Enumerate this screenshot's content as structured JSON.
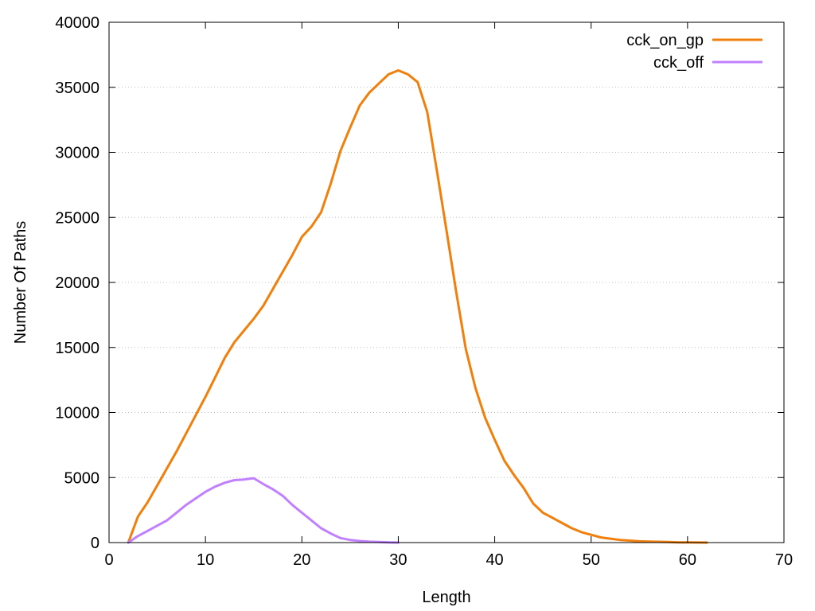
{
  "chart_data": {
    "type": "line",
    "title": "",
    "xlabel": "Length",
    "ylabel": "Number Of Paths",
    "xlim": [
      0,
      70
    ],
    "ylim": [
      0,
      40000
    ],
    "x_ticks": [
      0,
      10,
      20,
      30,
      40,
      50,
      60,
      70
    ],
    "y_ticks": [
      0,
      5000,
      10000,
      15000,
      20000,
      25000,
      30000,
      35000,
      40000
    ],
    "grid": "horizontal-dotted",
    "legend_position": "top-right",
    "series": [
      {
        "name": "cck_on_gp",
        "color": "#f07f0b",
        "x": [
          2,
          3,
          4,
          5,
          6,
          7,
          8,
          9,
          10,
          11,
          12,
          13,
          14,
          15,
          16,
          17,
          18,
          19,
          20,
          21,
          22,
          23,
          24,
          25,
          26,
          27,
          28,
          29,
          30,
          31,
          32,
          33,
          34,
          35,
          36,
          37,
          38,
          39,
          40,
          41,
          42,
          43,
          44,
          45,
          46,
          47,
          48,
          49,
          50,
          51,
          52,
          53,
          54,
          55,
          56,
          57,
          58,
          59,
          60,
          61,
          62
        ],
        "values": [
          0,
          2000,
          3100,
          4400,
          5700,
          7000,
          8400,
          9800,
          11200,
          12700,
          14200,
          15400,
          16300,
          17200,
          18200,
          19500,
          20800,
          22100,
          23500,
          24300,
          25400,
          27600,
          30100,
          31900,
          33600,
          34600,
          35300,
          36000,
          36300,
          36000,
          35400,
          33100,
          28600,
          24000,
          19300,
          14900,
          11900,
          9600,
          7900,
          6300,
          5200,
          4200,
          3000,
          2300,
          1900,
          1500,
          1100,
          800,
          600,
          400,
          300,
          200,
          150,
          100,
          80,
          60,
          40,
          20,
          10,
          5,
          0
        ]
      },
      {
        "name": "cck_off",
        "color": "#c080ff",
        "x": [
          2,
          3,
          4,
          5,
          6,
          7,
          8,
          9,
          10,
          11,
          12,
          13,
          14,
          15,
          16,
          17,
          18,
          19,
          20,
          21,
          22,
          23,
          24,
          25,
          26,
          27,
          28,
          29,
          30
        ],
        "values": [
          0,
          500,
          900,
          1300,
          1700,
          2300,
          2900,
          3400,
          3900,
          4300,
          4600,
          4800,
          4850,
          4950,
          4500,
          4100,
          3600,
          2900,
          2300,
          1700,
          1100,
          700,
          350,
          200,
          120,
          70,
          40,
          15,
          0
        ]
      }
    ]
  }
}
